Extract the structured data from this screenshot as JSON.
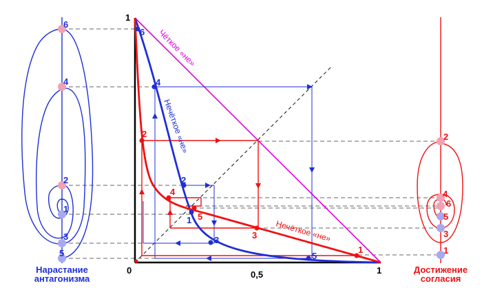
{
  "colors": {
    "blue": "#1f2fd6",
    "red": "#ee1111",
    "magenta": "#e000e0",
    "axis": "#000000",
    "dash": "#333333",
    "point_pink": "#f2a0b4",
    "point_lilac": "#a8a8f0"
  },
  "axes": {
    "origin_label": "0",
    "mid_label": "0,5",
    "x_end_label": "1",
    "y_end_label": "1"
  },
  "curves": {
    "crisp_not": "Чёткое «не»",
    "fuzzy_not_blue": "Нечёткое «не»",
    "fuzzy_not_red": "Нечёткое «не»"
  },
  "left_spiral": {
    "caption_line1": "Нарастание",
    "caption_line2": "антагонизма",
    "labels": [
      "6",
      "4",
      "2",
      "1",
      "3",
      "5"
    ]
  },
  "right_spiral": {
    "caption_line1": "Достижение",
    "caption_line2": "согласия",
    "labels": [
      "2",
      "4",
      "6",
      "5",
      "3",
      "1"
    ]
  },
  "blue_points": [
    "6",
    "4",
    "2",
    "1",
    "3",
    "5"
  ],
  "red_points": [
    "2",
    "4",
    "5",
    "3",
    "1"
  ]
}
